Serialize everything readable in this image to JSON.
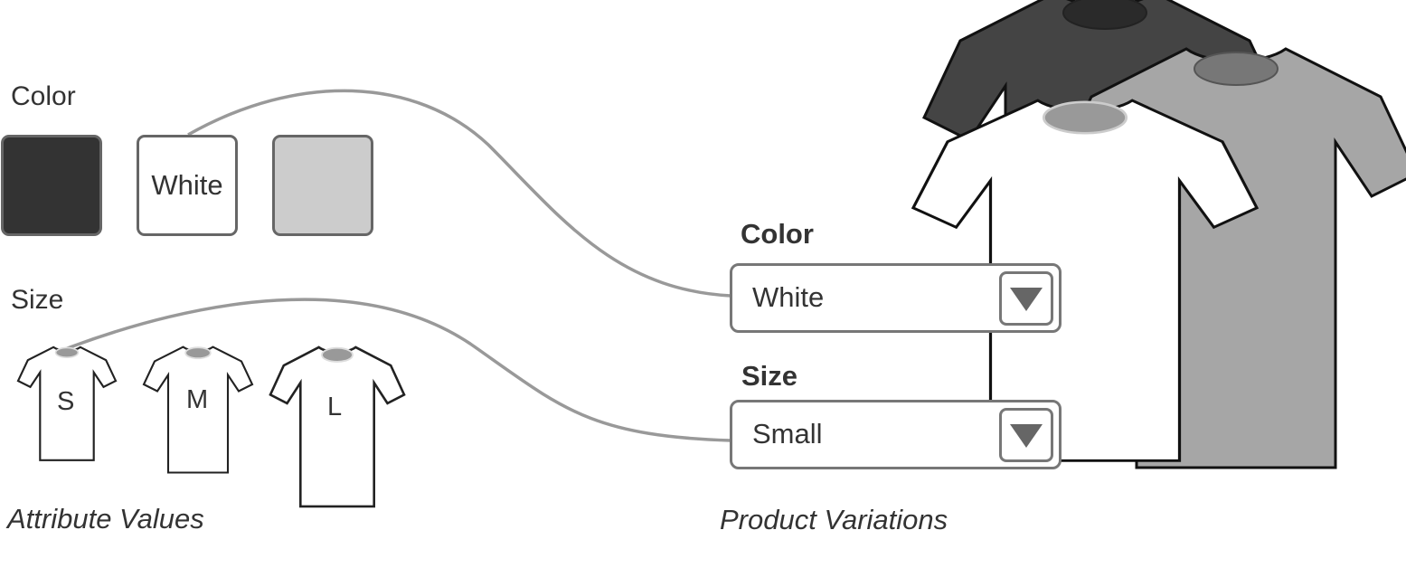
{
  "attribute_values": {
    "color_heading": "Color",
    "swatches": [
      {
        "label": "",
        "fill": "#333333"
      },
      {
        "label": "White",
        "fill": "#ffffff"
      },
      {
        "label": "",
        "fill": "#cccccc"
      }
    ],
    "size_heading": "Size",
    "sizes": [
      "S",
      "M",
      "L"
    ],
    "caption": "Attribute Values"
  },
  "product_variations": {
    "color_label": "Color",
    "color_value": "White",
    "size_label": "Size",
    "size_value": "Small",
    "caption": "Product Variations",
    "shirt_colors": [
      "#444444",
      "#a6a6a6",
      "#ffffff"
    ]
  },
  "icons": {
    "dropdown": "triangle-down-icon",
    "shirt": "tshirt-icon"
  },
  "colors": {
    "connector": "#999999",
    "border": "#666666"
  }
}
